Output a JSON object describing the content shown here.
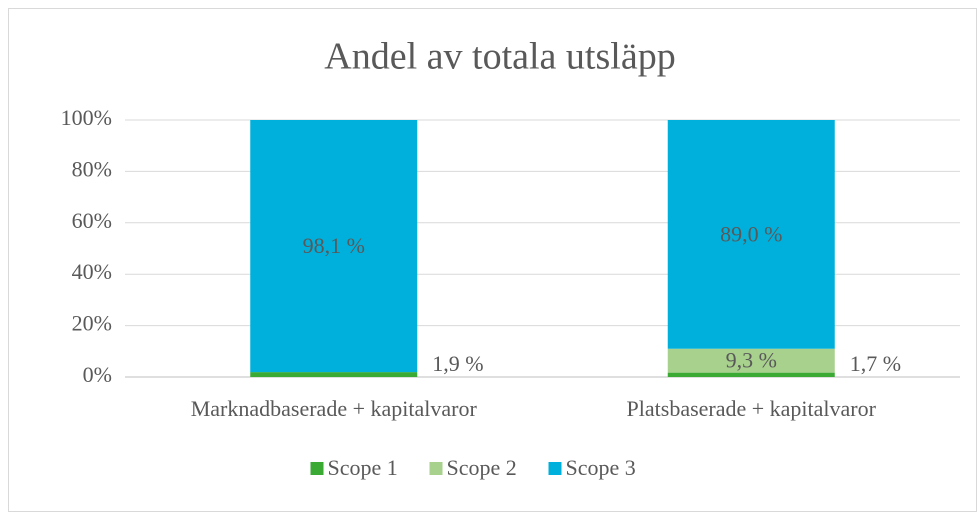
{
  "chart_data": {
    "type": "stacked_bar",
    "title": "Andel av totala utsläpp",
    "categories": [
      "Marknadbaserade + kapitalvaror",
      "Platsbaserade + kapitalvaror"
    ],
    "series": [
      {
        "name": "Scope 1",
        "color": "#3aaa35",
        "values": [
          1.9,
          1.7
        ],
        "value_labels": [
          "1,9 %",
          "1,7 %"
        ]
      },
      {
        "name": "Scope 2",
        "color": "#a9d18e",
        "values": [
          0,
          9.3
        ],
        "value_labels": [
          null,
          "9,3 %"
        ]
      },
      {
        "name": "Scope 3",
        "color": "#00b0dc",
        "values": [
          98.1,
          89.0
        ],
        "value_labels": [
          "98,1 %",
          "89,0 %"
        ]
      }
    ],
    "ylim": [
      0,
      100
    ],
    "yticks": [
      {
        "value": 0,
        "label": "0%"
      },
      {
        "value": 20,
        "label": "20%"
      },
      {
        "value": 40,
        "label": "40%"
      },
      {
        "value": 60,
        "label": "60%"
      },
      {
        "value": 80,
        "label": "80%"
      },
      {
        "value": 100,
        "label": "100%"
      }
    ],
    "grid": true,
    "legend": "bottom"
  }
}
